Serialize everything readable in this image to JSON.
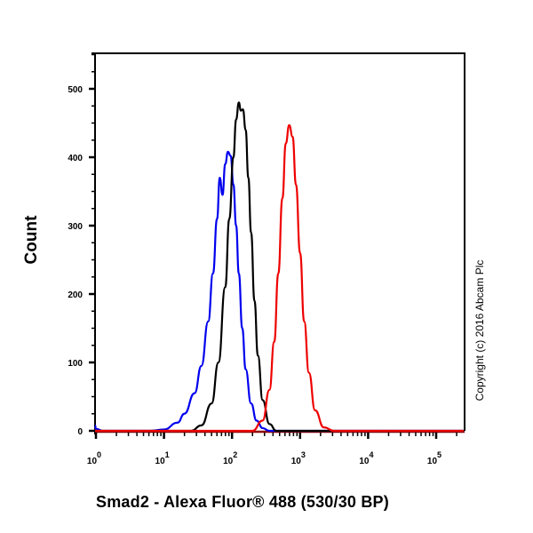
{
  "chart_data": {
    "type": "line",
    "title": "",
    "xlabel": "Smad2 - Alexa Fluor® 488 (530/30 BP)",
    "ylabel": "Count",
    "xscale": "log",
    "xlim_log10": [
      -0.1,
      5.4
    ],
    "ylim": [
      0,
      560
    ],
    "x_tick_labels": [
      "10^0",
      "10^1",
      "10^2",
      "10^3",
      "10^4",
      "10^5"
    ],
    "x_tick_exponents": [
      0,
      1,
      2,
      3,
      4,
      5
    ],
    "y_ticks": [
      0,
      100,
      200,
      300,
      400,
      500
    ],
    "grid": false,
    "legend": null,
    "annotation": "Copyright (c) 2016 Abcam Plc",
    "series": [
      {
        "name": "blue",
        "color": "#0000ee",
        "log10_x": [
          -0.1,
          0.0,
          0.1,
          0.8,
          1.0,
          1.2,
          1.3,
          1.45,
          1.55,
          1.65,
          1.72,
          1.78,
          1.82,
          1.86,
          1.9,
          1.94,
          1.98,
          2.02,
          2.06,
          2.1,
          2.15,
          2.2,
          2.28,
          2.36,
          2.45,
          2.55,
          5.4
        ],
        "values": [
          8,
          3,
          0,
          0,
          2,
          12,
          25,
          55,
          95,
          160,
          230,
          310,
          370,
          345,
          390,
          408,
          402,
          360,
          300,
          230,
          150,
          90,
          40,
          15,
          4,
          0,
          0
        ]
      },
      {
        "name": "black",
        "color": "#000000",
        "log10_x": [
          -0.1,
          1.4,
          1.55,
          1.7,
          1.8,
          1.9,
          1.96,
          2.02,
          2.06,
          2.1,
          2.13,
          2.16,
          2.2,
          2.24,
          2.28,
          2.33,
          2.38,
          2.45,
          2.55,
          2.65,
          5.4
        ],
        "values": [
          0,
          0,
          8,
          40,
          100,
          210,
          310,
          400,
          455,
          480,
          468,
          470,
          440,
          370,
          290,
          190,
          110,
          45,
          10,
          0,
          0
        ]
      },
      {
        "name": "red",
        "color": "#ee0000",
        "log10_x": [
          -0.1,
          2.3,
          2.45,
          2.55,
          2.62,
          2.68,
          2.74,
          2.79,
          2.84,
          2.89,
          2.94,
          3.0,
          3.06,
          3.13,
          3.22,
          3.35,
          3.5,
          5.4
        ],
        "values": [
          0,
          0,
          15,
          60,
          130,
          230,
          340,
          420,
          447,
          430,
          360,
          260,
          160,
          85,
          30,
          5,
          0,
          0
        ]
      }
    ]
  }
}
